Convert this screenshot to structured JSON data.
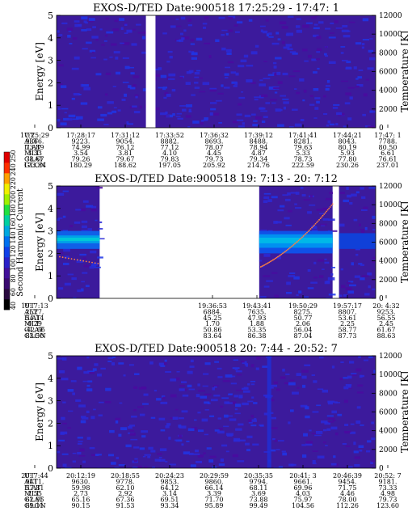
{
  "colorbar": {
    "label": "Second Harmonic Current",
    "ticks": [
      "40",
      "60",
      "80",
      "100",
      "120",
      "140",
      "160",
      "180",
      "200",
      "220",
      "240",
      "250"
    ],
    "colors": [
      "#000000",
      "#2a0a40",
      "#3a0a70",
      "#42109a",
      "#2a20c8",
      "#1040e8",
      "#0070f0",
      "#00a8e0",
      "#00d0a0",
      "#20e040",
      "#a0f000",
      "#f0f000",
      "#ffa000",
      "#ff3000",
      "#e00000"
    ]
  },
  "chart_data": [
    {
      "type": "heatmap",
      "title": "EXOS-D/TED   Date:900518  17:25:29 - 17:47: 1",
      "ylabel": "Energy [eV]",
      "ylabel_right": "Temperature [K]",
      "y_ticks": [
        "0",
        "1",
        "2",
        "3",
        "4",
        "5"
      ],
      "y2_ticks": [
        "0",
        "2000",
        "4000",
        "6000",
        "8000",
        "10000",
        "12000"
      ],
      "ylim": [
        0,
        5
      ],
      "y2lim": [
        0,
        12000
      ],
      "gaps": [
        [
          0.28,
          0.31
        ]
      ],
      "background": "#3c1a9c",
      "table": {
        "row_labels": [
          "UT",
          "ALT",
          "ILAT",
          "MLT",
          "GLAT",
          "GLON"
        ],
        "columns": [
          [
            "17:25:29",
            "9366.",
            "73.89",
            "3.33",
            "78.67",
            "173.34"
          ],
          [
            "17:28:17",
            "9223.",
            "74.99",
            "3.54",
            "79.26",
            "180.29"
          ],
          [
            "17:31:12",
            "9054.",
            "76.12",
            "3.81",
            "79.67",
            "188.62"
          ],
          [
            "17:33:52",
            "8882.",
            "77.12",
            "4.10",
            "79.83",
            "197.05"
          ],
          [
            "17:36:32",
            "8693.",
            "78.07",
            "4.45",
            "79.73",
            "205.92"
          ],
          [
            "17:39:12",
            "8488.",
            "78.94",
            "4.87",
            "79.34",
            "214.76"
          ],
          [
            "17:41:41",
            "8281.",
            "79.63",
            "5.33",
            "78.73",
            "222.59"
          ],
          [
            "17:44:21",
            "8043.",
            "80.19",
            "5.93",
            "77.80",
            "230.26"
          ],
          [
            "17:47: 1",
            "7788.",
            "80.50",
            "6.61",
            "76.61",
            "237.01"
          ]
        ]
      }
    },
    {
      "type": "heatmap",
      "title": "EXOS-D/TED   Date:900518  19: 7:13 - 20: 7:12",
      "ylabel": "Energy [eV]",
      "ylabel_right": "Temperature [K]",
      "y_ticks": [
        "0",
        "1",
        "2",
        "3",
        "4",
        "5"
      ],
      "y2_ticks": [
        "0",
        "2000",
        "4000",
        "6000",
        "8000",
        "10000",
        "12000"
      ],
      "ylim": [
        0,
        5
      ],
      "y2lim": [
        0,
        12000
      ],
      "data_segments": [
        [
          0.0,
          0.135
        ],
        [
          0.635,
          0.865
        ],
        [
          0.885,
          1.0
        ]
      ],
      "background": "#3c1a9c",
      "table": {
        "row_labels": [
          "UT",
          "ALT",
          "ILAT",
          "MLT",
          "GLAT",
          "GLON"
        ],
        "columns": [
          [
            "19: 7:13",
            "2527.",
            "54.14",
            "0.29",
            "-42.66",
            "83.50"
          ],
          [
            "19:36:53",
            "6884.",
            "45.25",
            "1.70",
            "50.86",
            "83.64"
          ],
          [
            "19:43:41",
            "7635.",
            "47.93",
            "1.88",
            "53.35",
            "86.38"
          ],
          [
            "19:50:29",
            "8275.",
            "50.77",
            "2.06",
            "56.04",
            "87.04"
          ],
          [
            "19:57:17",
            "8807.",
            "53.61",
            "2.25",
            "58.77",
            "87.73"
          ],
          [
            "20: 4:32",
            "9253.",
            "56.55",
            "2.45",
            "61.67",
            "88.63"
          ]
        ]
      }
    },
    {
      "type": "heatmap",
      "title": "EXOS-D/TED   Date:900518  20: 7:44 - 20:52: 7",
      "ylabel": "Energy [eV]",
      "ylabel_right": "Temperature [K]",
      "y_ticks": [
        "0",
        "1",
        "2",
        "3",
        "4",
        "5"
      ],
      "y2_ticks": [
        "0",
        "2000",
        "4000",
        "6000",
        "8000",
        "10000",
        "12000"
      ],
      "ylim": [
        0,
        5
      ],
      "y2lim": [
        0,
        12000
      ],
      "background": "#3c1a9c",
      "table": {
        "row_labels": [
          "UT",
          "ALT",
          "ILAT",
          "MLT",
          "GLAT",
          "GLON"
        ],
        "columns": [
          [
            "20: 7:44",
            "9411.",
            "57.81",
            "2.55",
            "62.95",
            "89.11"
          ],
          [
            "20:12:19",
            "9630.",
            "59.98",
            "2.73",
            "65.16",
            "90.15"
          ],
          [
            "20:18:55",
            "9778.",
            "62.10",
            "2.92",
            "67.36",
            "91.53"
          ],
          [
            "20:24:23",
            "9853.",
            "64.12",
            "3.14",
            "69.51",
            "93.34"
          ],
          [
            "20:29:59",
            "9860.",
            "66.14",
            "3.39",
            "71.70",
            "95.89"
          ],
          [
            "20:35:35",
            "9794.",
            "68.11",
            "3.69",
            "73.88",
            "99.49"
          ],
          [
            "20:41: 3",
            "9661.",
            "69.96",
            "4.03",
            "75.97",
            "104.56"
          ],
          [
            "20:46:39",
            "9454.",
            "71.75",
            "4.46",
            "78.00",
            "112.26"
          ],
          [
            "20:52: 7",
            "9181.",
            "73.33",
            "4.98",
            "79.73",
            "123.60"
          ]
        ]
      }
    }
  ]
}
